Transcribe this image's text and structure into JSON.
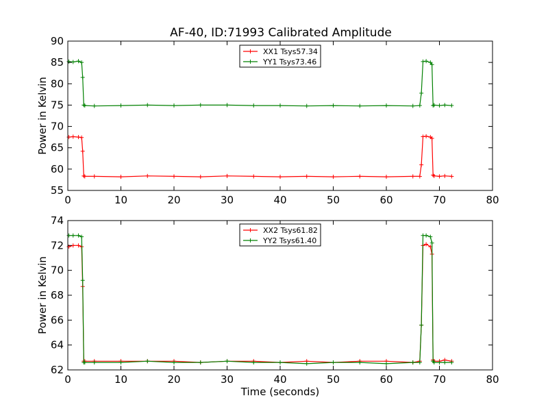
{
  "chart_data": [
    {
      "type": "line",
      "title": "AF-40, ID:71993 Calibrated Amplitude",
      "xlabel": "",
      "ylabel": "Power in Kelvin",
      "xlim": [
        0,
        80
      ],
      "ylim": [
        55,
        90
      ],
      "xticks": [
        "0",
        "10",
        "20",
        "30",
        "40",
        "50",
        "60",
        "70",
        "80"
      ],
      "yticks": [
        "55",
        "60",
        "65",
        "70",
        "75",
        "80",
        "85",
        "90"
      ],
      "legend_position": "top-center",
      "grid": false,
      "series": [
        {
          "name": "XX1 Tsys57.34",
          "color": "#ff0000",
          "x": [
            0.2,
            1.0,
            2.0,
            2.6,
            2.8,
            3.0,
            3.2,
            5,
            10,
            15,
            20,
            25,
            30,
            35,
            40,
            45,
            50,
            55,
            60,
            65,
            66.3,
            66.6,
            66.9,
            67.5,
            68.3,
            68.6,
            68.8,
            69.0,
            70,
            71,
            72.3
          ],
          "y": [
            67.5,
            67.6,
            67.5,
            67.4,
            64.2,
            58.4,
            58.3,
            58.3,
            58.2,
            58.4,
            58.3,
            58.2,
            58.4,
            58.3,
            58.2,
            58.3,
            58.2,
            58.3,
            58.2,
            58.3,
            58.3,
            61.0,
            67.6,
            67.7,
            67.5,
            67.2,
            58.6,
            58.4,
            58.3,
            58.4,
            58.3
          ]
        },
        {
          "name": "YY1 Tsys73.46",
          "color": "#008000",
          "x": [
            0.2,
            1.0,
            2.0,
            2.6,
            2.8,
            3.0,
            3.2,
            5,
            10,
            15,
            20,
            25,
            30,
            35,
            40,
            45,
            50,
            55,
            60,
            65,
            66.3,
            66.6,
            66.9,
            67.5,
            68.3,
            68.6,
            68.8,
            69.0,
            70,
            71,
            72.3
          ],
          "y": [
            85.2,
            85.1,
            85.3,
            85.0,
            81.5,
            75.0,
            74.9,
            74.8,
            74.9,
            75.0,
            74.9,
            75.0,
            75.0,
            74.9,
            74.9,
            74.8,
            74.9,
            74.8,
            74.9,
            74.8,
            74.9,
            77.8,
            85.2,
            85.3,
            85.0,
            84.5,
            74.9,
            75.0,
            74.9,
            75.0,
            74.9
          ]
        }
      ]
    },
    {
      "type": "line",
      "title": "",
      "xlabel": "Time (seconds)",
      "ylabel": "Power in Kelvin",
      "xlim": [
        0,
        80
      ],
      "ylim": [
        62,
        74
      ],
      "xticks": [
        "0",
        "10",
        "20",
        "30",
        "40",
        "50",
        "60",
        "70",
        "80"
      ],
      "yticks": [
        "62",
        "64",
        "66",
        "68",
        "70",
        "72",
        "74"
      ],
      "legend_position": "top-center",
      "grid": false,
      "series": [
        {
          "name": "XX2 Tsys61.82",
          "color": "#ff0000",
          "x": [
            0.2,
            1.0,
            2.0,
            2.6,
            2.8,
            3.0,
            3.2,
            5,
            10,
            15,
            20,
            25,
            30,
            35,
            40,
            45,
            50,
            55,
            60,
            65,
            66.3,
            66.6,
            66.9,
            67.5,
            68.3,
            68.6,
            68.8,
            69.0,
            70,
            71,
            72.3
          ],
          "y": [
            71.9,
            72.0,
            72.0,
            71.9,
            68.7,
            62.7,
            62.7,
            62.7,
            62.7,
            62.7,
            62.7,
            62.6,
            62.7,
            62.7,
            62.6,
            62.7,
            62.6,
            62.7,
            62.7,
            62.6,
            62.7,
            65.6,
            72.0,
            72.1,
            71.9,
            71.3,
            62.8,
            62.7,
            62.7,
            62.8,
            62.7
          ]
        },
        {
          "name": "YY2 Tsys61.40",
          "color": "#008000",
          "x": [
            0.2,
            1.0,
            2.0,
            2.6,
            2.8,
            3.0,
            3.2,
            5,
            10,
            15,
            20,
            25,
            30,
            35,
            40,
            45,
            50,
            55,
            60,
            65,
            66.3,
            66.6,
            66.9,
            67.5,
            68.3,
            68.6,
            68.8,
            69.0,
            70,
            71,
            72.3
          ],
          "y": [
            72.8,
            72.8,
            72.8,
            72.7,
            69.2,
            62.6,
            62.6,
            62.6,
            62.6,
            62.7,
            62.6,
            62.6,
            62.7,
            62.6,
            62.6,
            62.5,
            62.6,
            62.6,
            62.5,
            62.6,
            62.6,
            65.6,
            72.8,
            72.8,
            72.7,
            72.2,
            62.7,
            62.6,
            62.6,
            62.6,
            62.6
          ]
        }
      ]
    }
  ]
}
